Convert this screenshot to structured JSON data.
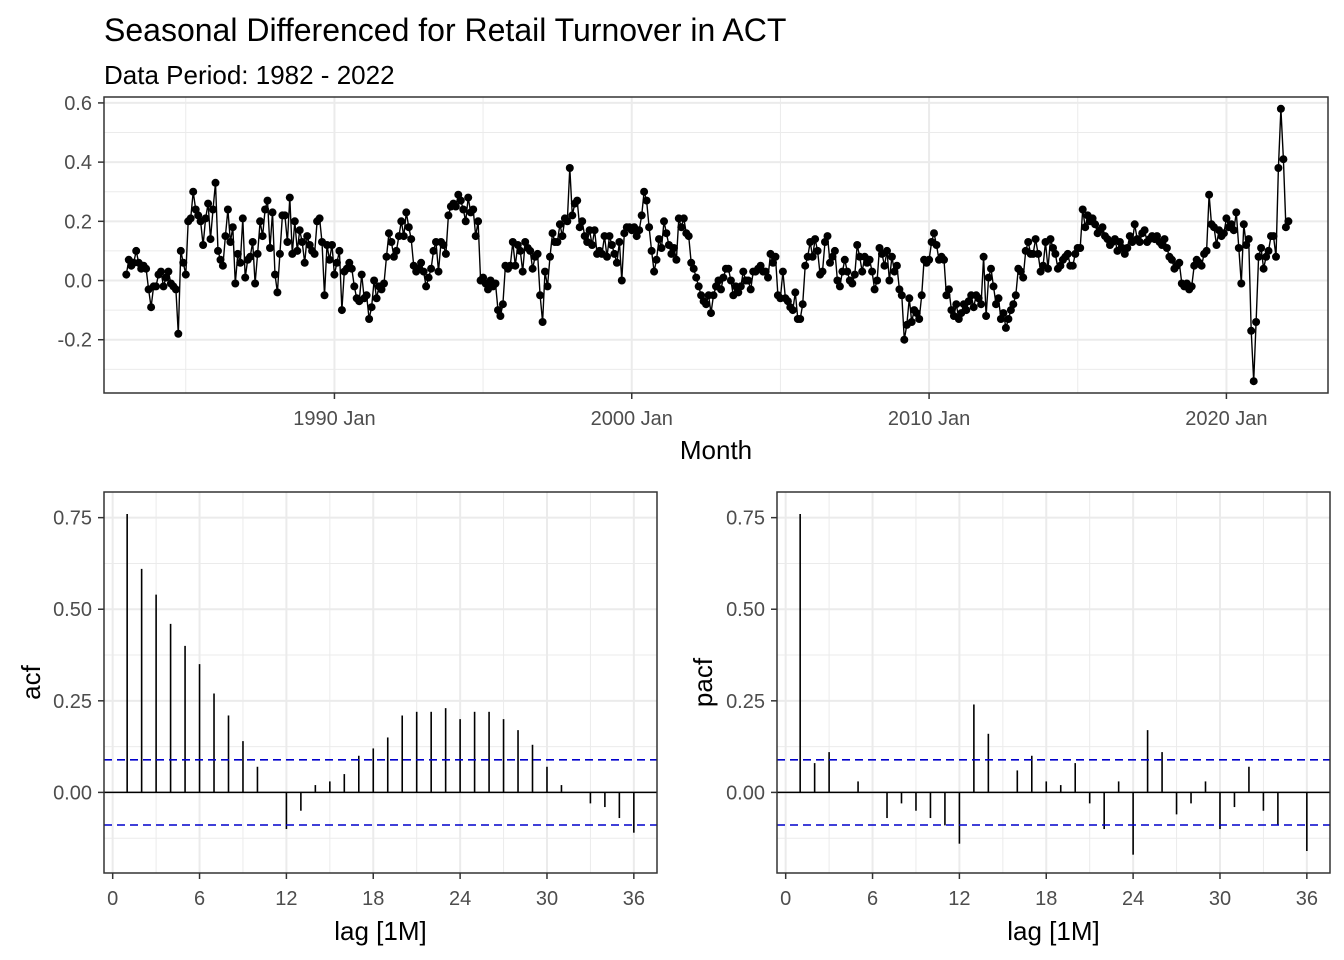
{
  "title": "Seasonal Differenced for Retail Turnover in ACT",
  "subtitle": "Data Period: 1982 - 2022",
  "chart_data": [
    {
      "type": "line",
      "panel": "top",
      "xlabel": "Month",
      "ylabel": "",
      "x_ticks": [
        "1990 Jan",
        "2000 Jan",
        "2010 Jan",
        "2020 Jan"
      ],
      "y_ticks": [
        "-0.2",
        "0.0",
        "0.2",
        "0.4",
        "0.6"
      ],
      "xlim": [
        "1982-04",
        "2023-06"
      ],
      "ylim": [
        -0.38,
        0.62
      ],
      "grid": true,
      "markers": true,
      "series": [
        {
          "start": "1983-01",
          "frequency": "monthly",
          "values": [
            0.02,
            0.07,
            0.05,
            0.06,
            0.1,
            0.06,
            0.04,
            0.05,
            0.04,
            -0.03,
            -0.09,
            -0.02,
            -0.02,
            0.02,
            0.03,
            -0.02,
            0.01,
            0.03,
            -0.01,
            -0.02,
            -0.03,
            -0.18,
            0.1,
            0.06,
            0.02,
            0.2,
            0.21,
            0.3,
            0.24,
            0.22,
            0.2,
            0.12,
            0.21,
            0.26,
            0.14,
            0.24,
            0.33,
            0.1,
            0.07,
            0.05,
            0.15,
            0.24,
            0.13,
            0.18,
            -0.01,
            0.09,
            0.06,
            0.21,
            0.01,
            0.07,
            0.08,
            0.13,
            -0.01,
            0.09,
            0.2,
            0.15,
            0.24,
            0.27,
            0.11,
            0.23,
            0.02,
            -0.04,
            0.09,
            0.22,
            0.22,
            0.13,
            0.28,
            0.09,
            0.2,
            0.1,
            0.17,
            0.13,
            0.06,
            0.15,
            0.12,
            0.1,
            0.09,
            0.2,
            0.21,
            0.13,
            -0.05,
            0.12,
            0.07,
            0.12,
            0.02,
            0.06,
            0.1,
            -0.1,
            0.03,
            0.04,
            0.06,
            0.04,
            -0.02,
            -0.06,
            -0.07,
            0.02,
            -0.06,
            -0.05,
            -0.13,
            -0.09,
            0.0,
            -0.06,
            -0.02,
            -0.03,
            -0.01,
            0.08,
            0.16,
            0.13,
            0.08,
            0.1,
            0.15,
            0.2,
            0.15,
            0.23,
            0.18,
            0.14,
            0.05,
            0.03,
            0.04,
            0.06,
            0.03,
            -0.02,
            0.01,
            0.04,
            0.1,
            0.13,
            0.03,
            0.13,
            0.12,
            0.09,
            0.22,
            0.25,
            0.26,
            0.25,
            0.29,
            0.27,
            0.24,
            0.2,
            0.28,
            0.23,
            0.24,
            0.15,
            0.2,
            0.0,
            0.01,
            -0.01,
            -0.03,
            0.0,
            -0.02,
            -0.01,
            -0.1,
            -0.12,
            -0.08,
            0.05,
            0.04,
            0.05,
            0.13,
            0.05,
            0.12,
            0.1,
            0.03,
            0.13,
            0.11,
            0.1,
            0.04,
            0.08,
            0.09,
            -0.05,
            -0.14,
            0.03,
            -0.02,
            0.08,
            0.16,
            0.13,
            0.13,
            0.19,
            0.15,
            0.21,
            0.2,
            0.38,
            0.22,
            0.26,
            0.27,
            0.18,
            0.2,
            0.15,
            0.13,
            0.17,
            0.12,
            0.17,
            0.09,
            0.1,
            0.09,
            0.15,
            0.08,
            0.15,
            0.12,
            0.09,
            0.06,
            0.13,
            0.0,
            0.16,
            0.18,
            0.18,
            0.17,
            0.18,
            0.15,
            0.17,
            0.22,
            0.3,
            0.27,
            0.18,
            0.1,
            0.03,
            0.07,
            0.14,
            0.11,
            0.2,
            0.16,
            0.12,
            0.09,
            0.11,
            0.07,
            0.21,
            0.18,
            0.21,
            0.16,
            0.15,
            0.06,
            0.04,
            0.01,
            -0.02,
            -0.05,
            -0.07,
            -0.08,
            -0.05,
            -0.11,
            -0.05,
            -0.02,
            0.0,
            -0.03,
            0.01,
            0.04,
            0.04,
            0.0,
            -0.05,
            -0.02,
            -0.04,
            -0.02,
            0.03,
            0.0,
            0.0,
            -0.03,
            0.03,
            0.03,
            0.04,
            0.05,
            0.03,
            0.03,
            0.01,
            0.09,
            0.06,
            0.08,
            -0.05,
            -0.06,
            0.03,
            -0.06,
            -0.07,
            -0.09,
            -0.1,
            -0.04,
            -0.13,
            -0.13,
            -0.08,
            0.05,
            0.08,
            0.13,
            0.08,
            0.14,
            0.1,
            0.02,
            0.03,
            0.13,
            0.15,
            0.06,
            0.08,
            0.1,
            0.0,
            -0.02,
            0.03,
            0.07,
            0.03,
            0.0,
            -0.01,
            0.02,
            0.12,
            0.08,
            0.03,
            0.08,
            0.06,
            0.07,
            0.03,
            -0.03,
            0.0,
            0.11,
            0.09,
            0.05,
            0.1,
            0.0,
            0.08,
            0.03,
            0.05,
            -0.03,
            -0.05,
            -0.2,
            -0.15,
            -0.06,
            -0.14,
            -0.1,
            -0.11,
            -0.13,
            -0.05,
            0.07,
            0.06,
            0.07,
            0.13,
            0.16,
            0.12,
            0.07,
            0.08,
            0.07,
            -0.05,
            -0.03,
            -0.1,
            -0.12,
            -0.08,
            -0.13,
            -0.11,
            -0.08,
            -0.1,
            -0.07,
            -0.05,
            -0.09,
            -0.05,
            -0.06,
            -0.08,
            0.08,
            -0.12,
            0.01,
            0.04,
            -0.02,
            -0.08,
            -0.06,
            -0.13,
            -0.11,
            -0.16,
            -0.13,
            -0.1,
            -0.08,
            -0.05,
            0.04,
            0.03,
            0.01,
            0.1,
            0.13,
            0.09,
            0.09,
            0.14,
            0.09,
            0.03,
            0.05,
            0.13,
            0.04,
            0.14,
            0.11,
            0.09,
            0.04,
            0.05,
            0.07,
            0.08,
            0.09,
            0.05,
            0.05,
            0.09,
            0.11,
            0.11,
            0.24,
            0.18,
            0.22,
            0.2,
            0.21,
            0.19,
            0.16,
            0.17,
            0.18,
            0.15,
            0.14,
            0.12,
            0.13,
            0.14,
            0.1,
            0.13,
            0.11,
            0.09,
            0.11,
            0.15,
            0.13,
            0.19,
            0.14,
            0.13,
            0.16,
            0.17,
            0.13,
            0.14,
            0.15,
            0.14,
            0.15,
            0.13,
            0.12,
            0.14,
            0.11,
            0.08,
            0.07,
            0.04,
            0.05,
            0.06,
            -0.01,
            -0.02,
            -0.01,
            -0.03,
            -0.02,
            0.05,
            0.07,
            0.06,
            0.05,
            0.09,
            0.1,
            0.29,
            0.19,
            0.18,
            0.12,
            0.17,
            0.15,
            0.16,
            0.21,
            0.18,
            0.19,
            0.17,
            0.23,
            0.11,
            -0.01,
            0.19,
            0.12,
            0.14,
            -0.17,
            -0.34,
            -0.14,
            0.08,
            0.11,
            0.04,
            0.08,
            0.1,
            0.15,
            0.15,
            0.08,
            0.38,
            0.58,
            0.41,
            0.18,
            0.2
          ]
        }
      ]
    },
    {
      "type": "bar",
      "panel": "bottom-left",
      "xlabel": "lag [1M]",
      "ylabel": "acf",
      "x_ticks": [
        "0",
        "6",
        "12",
        "18",
        "24",
        "30",
        "36"
      ],
      "y_ticks": [
        "0.00",
        "0.25",
        "0.50",
        "0.75"
      ],
      "xlim": [
        -0.6,
        37.6
      ],
      "ylim": [
        -0.22,
        0.82
      ],
      "grid": true,
      "confidence_band": 0.089,
      "lags": [
        1,
        2,
        3,
        4,
        5,
        6,
        7,
        8,
        9,
        10,
        11,
        12,
        13,
        14,
        15,
        16,
        17,
        18,
        19,
        20,
        21,
        22,
        23,
        24,
        25,
        26,
        27,
        28,
        29,
        30,
        31,
        32,
        33,
        34,
        35,
        36
      ],
      "values": [
        0.76,
        0.61,
        0.54,
        0.46,
        0.4,
        0.35,
        0.27,
        0.21,
        0.14,
        0.07,
        0.0,
        -0.1,
        -0.05,
        0.02,
        0.03,
        0.05,
        0.1,
        0.12,
        0.15,
        0.21,
        0.22,
        0.22,
        0.23,
        0.2,
        0.22,
        0.22,
        0.2,
        0.17,
        0.13,
        0.07,
        0.02,
        0.0,
        -0.03,
        -0.04,
        -0.07,
        -0.11
      ]
    },
    {
      "type": "bar",
      "panel": "bottom-right",
      "xlabel": "lag [1M]",
      "ylabel": "pacf",
      "x_ticks": [
        "0",
        "6",
        "12",
        "18",
        "24",
        "30",
        "36"
      ],
      "y_ticks": [
        "0.00",
        "0.25",
        "0.50",
        "0.75"
      ],
      "xlim": [
        -0.6,
        37.6
      ],
      "ylim": [
        -0.22,
        0.82
      ],
      "grid": true,
      "confidence_band": 0.089,
      "lags": [
        1,
        2,
        3,
        4,
        5,
        6,
        7,
        8,
        9,
        10,
        11,
        12,
        13,
        14,
        15,
        16,
        17,
        18,
        19,
        20,
        21,
        22,
        23,
        24,
        25,
        26,
        27,
        28,
        29,
        30,
        31,
        32,
        33,
        34,
        35,
        36
      ],
      "values": [
        0.76,
        0.08,
        0.11,
        0.0,
        0.03,
        0.0,
        -0.07,
        -0.03,
        -0.05,
        -0.07,
        -0.09,
        -0.14,
        0.24,
        0.16,
        0.0,
        0.06,
        0.1,
        0.03,
        0.02,
        0.08,
        -0.03,
        -0.1,
        0.03,
        -0.17,
        0.17,
        0.11,
        -0.06,
        -0.03,
        0.03,
        -0.1,
        -0.04,
        0.07,
        -0.05,
        -0.09,
        0.0,
        -0.16
      ]
    }
  ]
}
